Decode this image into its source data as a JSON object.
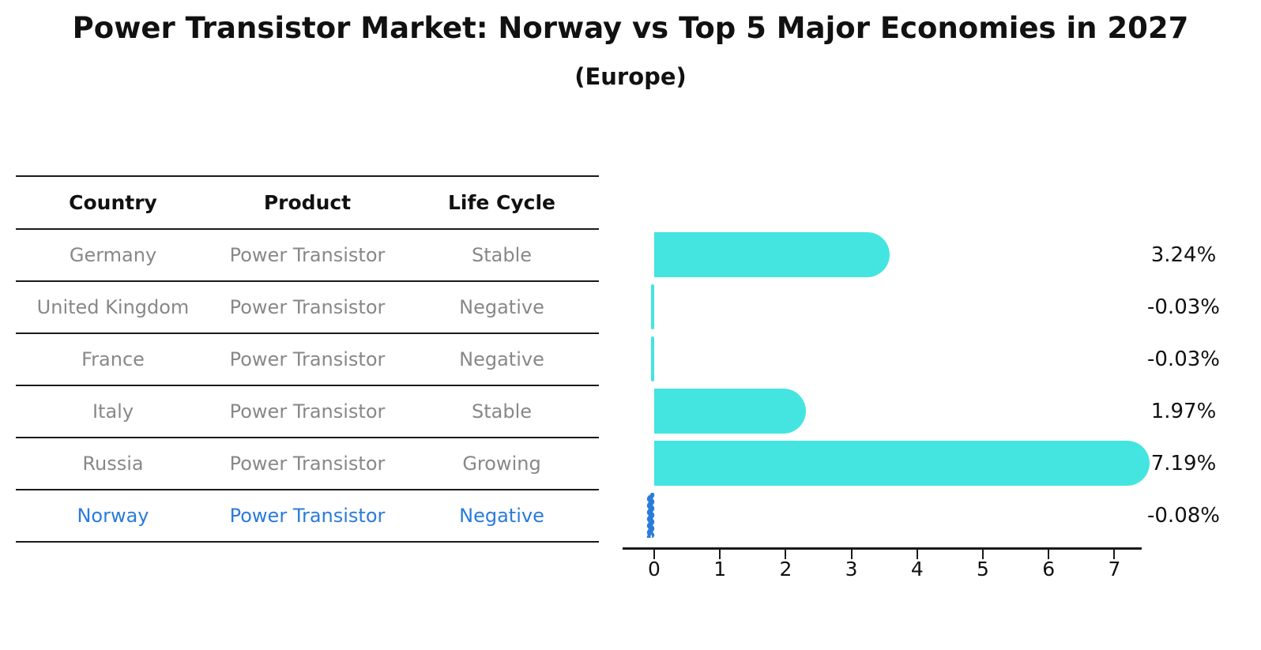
{
  "title": "Power Transistor Market: Norway vs Top 5 Major Economies in 2027",
  "subtitle": "(Europe)",
  "table": {
    "headers": {
      "country": "Country",
      "product": "Product",
      "life_cycle": "Life Cycle"
    },
    "rows": [
      {
        "country": "Germany",
        "product": "Power Transistor",
        "life_cycle": "Stable",
        "highlight": false
      },
      {
        "country": "United Kingdom",
        "product": "Power Transistor",
        "life_cycle": "Negative",
        "highlight": false
      },
      {
        "country": "France",
        "product": "Power Transistor",
        "life_cycle": "Negative",
        "highlight": false
      },
      {
        "country": "Italy",
        "product": "Power Transistor",
        "life_cycle": "Stable",
        "highlight": false
      },
      {
        "country": "Russia",
        "product": "Power Transistor",
        "life_cycle": "Growing",
        "highlight": false
      },
      {
        "country": "Norway",
        "product": "Power Transistor",
        "life_cycle": "Negative",
        "highlight": true
      }
    ]
  },
  "chart_data": {
    "type": "bar",
    "orientation": "horizontal",
    "title": "",
    "categories": [
      "Germany",
      "United Kingdom",
      "France",
      "Italy",
      "Russia",
      "Norway"
    ],
    "values": [
      3.24,
      -0.03,
      -0.03,
      1.97,
      7.19,
      -0.08
    ],
    "value_labels": [
      "3.24%",
      "-0.03%",
      "-0.03%",
      "1.97%",
      "7.19%",
      "-0.08%"
    ],
    "x_ticks": [
      0,
      1,
      2,
      3,
      4,
      5,
      6,
      7
    ],
    "xlim": [
      -0.5,
      7.4
    ],
    "xlabel": "",
    "ylabel": "",
    "grid": false,
    "legend": false,
    "bar_color": "#44e5e0",
    "highlight_color": "#2b7bdb",
    "highlight_index": 5,
    "highlight_style": "wavy-line",
    "unit_suffix": "%"
  },
  "colors": {
    "bar": "#44e5e0",
    "highlight": "#2b7bdb",
    "muted_text": "#888888",
    "dark_text": "#111111"
  }
}
